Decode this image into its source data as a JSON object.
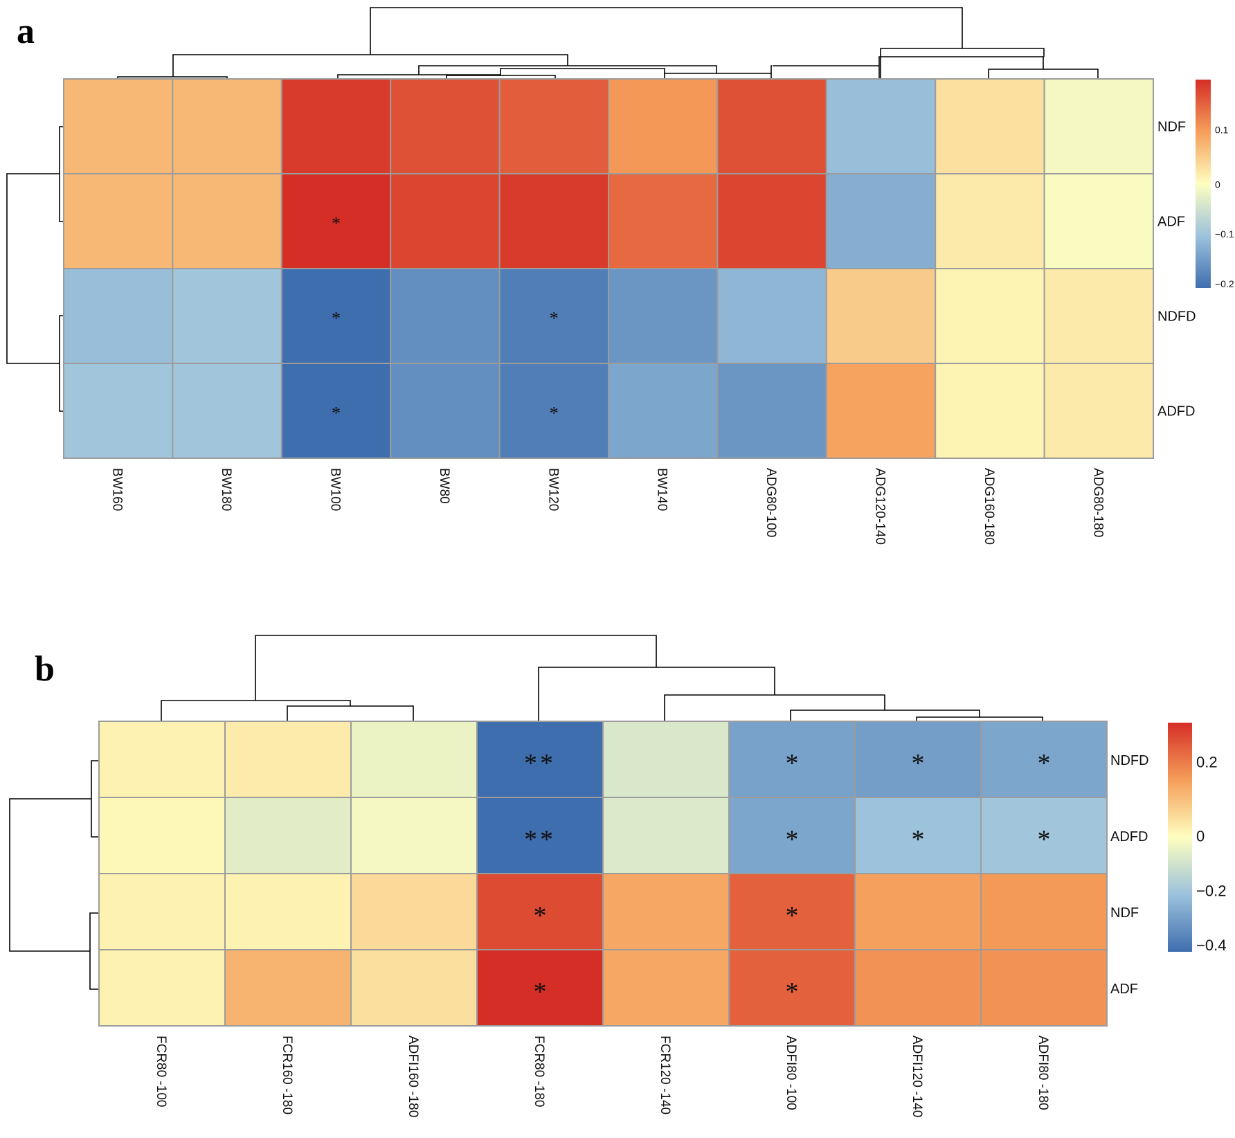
{
  "panels": [
    {
      "label": "a",
      "rows": [
        "NDF",
        "ADF",
        "NDFD",
        "ADFD"
      ],
      "columns": [
        "BW160",
        "BW180",
        "BW100",
        "BW80",
        "BW120",
        "BW140",
        "ADG80-100",
        "ADG120-140",
        "ADG160-180",
        "ADG80-180"
      ]
    },
    {
      "label": "b",
      "rows": [
        "NDFD",
        "ADFD",
        "NDF",
        "ADF"
      ],
      "columns": [
        "FCR80 -100",
        "FCR160 -180",
        "ADFI160 -180",
        "FCR80 -180",
        "FCR120 -140",
        "ADFI80 -100",
        "ADFI120 -140",
        "ADFI80 -180"
      ]
    }
  ],
  "chart_data": [
    {
      "type": "heatmap",
      "title": "a",
      "rows": [
        "NDF",
        "ADF",
        "NDFD",
        "ADFD"
      ],
      "columns": [
        "BW160",
        "BW180",
        "BW100",
        "BW80",
        "BW120",
        "BW140",
        "ADG80-100",
        "ADG120-140",
        "ADG160-180",
        "ADG80-180"
      ],
      "values": [
        [
          0.07,
          0.07,
          0.18,
          0.16,
          0.15,
          0.1,
          0.16,
          -0.11,
          0.03,
          -0.01
        ],
        [
          0.07,
          0.07,
          0.2,
          0.17,
          0.18,
          0.14,
          0.17,
          -0.13,
          0.02,
          -0.005
        ],
        [
          -0.11,
          -0.1,
          -0.21,
          -0.17,
          -0.19,
          -0.16,
          -0.12,
          0.05,
          0.01,
          0.02
        ],
        [
          -0.1,
          -0.1,
          -0.22,
          -0.17,
          -0.19,
          -0.14,
          -0.16,
          0.09,
          0.01,
          0.02
        ]
      ],
      "significance": [
        [
          "",
          "",
          "",
          "",
          "",
          "",
          "",
          "",
          "",
          ""
        ],
        [
          "",
          "",
          "*",
          "",
          "",
          "",
          "",
          "",
          "",
          ""
        ],
        [
          "",
          "",
          "*",
          "",
          "*",
          "",
          "",
          "",
          "",
          ""
        ],
        [
          "",
          "",
          "*",
          "",
          "*",
          "",
          "",
          "",
          "",
          ""
        ]
      ],
      "colorbar": {
        "range": [
          -0.21,
          0.19
        ],
        "ticks": [
          0.1,
          0,
          -0.1,
          -0.2
        ],
        "tick_labels": [
          "0.1",
          "0",
          "−0.1",
          "−0.2"
        ]
      },
      "colors": {
        "low": "#3f6eae",
        "mid": "#fefebf",
        "high": "#d52e26"
      }
    },
    {
      "type": "heatmap",
      "title": "b",
      "rows": [
        "NDFD",
        "ADFD",
        "NDF",
        "ADF"
      ],
      "columns": [
        "FCR80 -100",
        "FCR160 -180",
        "ADFI160 -180",
        "FCR80 -180",
        "FCR120 -140",
        "ADFI80 -100",
        "ADFI120 -140",
        "ADFI80 -180"
      ],
      "values": [
        [
          0.02,
          0.03,
          -0.04,
          -0.42,
          -0.08,
          -0.29,
          -0.3,
          -0.28
        ],
        [
          0.01,
          -0.06,
          -0.02,
          -0.42,
          -0.07,
          -0.28,
          -0.21,
          -0.2
        ],
        [
          0.02,
          0.02,
          0.06,
          0.27,
          0.14,
          0.24,
          0.15,
          0.16
        ],
        [
          0.02,
          0.12,
          0.05,
          0.31,
          0.14,
          0.24,
          0.17,
          0.17
        ]
      ],
      "significance": [
        [
          "",
          "",
          "",
          "**",
          "",
          "*",
          "*",
          "*"
        ],
        [
          "",
          "",
          "",
          "**",
          "",
          "*",
          "*",
          "*"
        ],
        [
          "",
          "",
          "",
          "*",
          "",
          "*",
          "",
          ""
        ],
        [
          "",
          "",
          "",
          "*",
          "",
          "*",
          "",
          ""
        ]
      ],
      "colorbar": {
        "range": [
          -0.42,
          0.31
        ],
        "ticks": [
          0.2,
          0,
          -0.2,
          -0.4
        ],
        "tick_labels": [
          "0.2",
          "0",
          "−0.2",
          "−0.4"
        ]
      },
      "colors": {
        "low": "#3f6eae",
        "mid": "#fefebf",
        "high": "#d52e26"
      }
    }
  ]
}
